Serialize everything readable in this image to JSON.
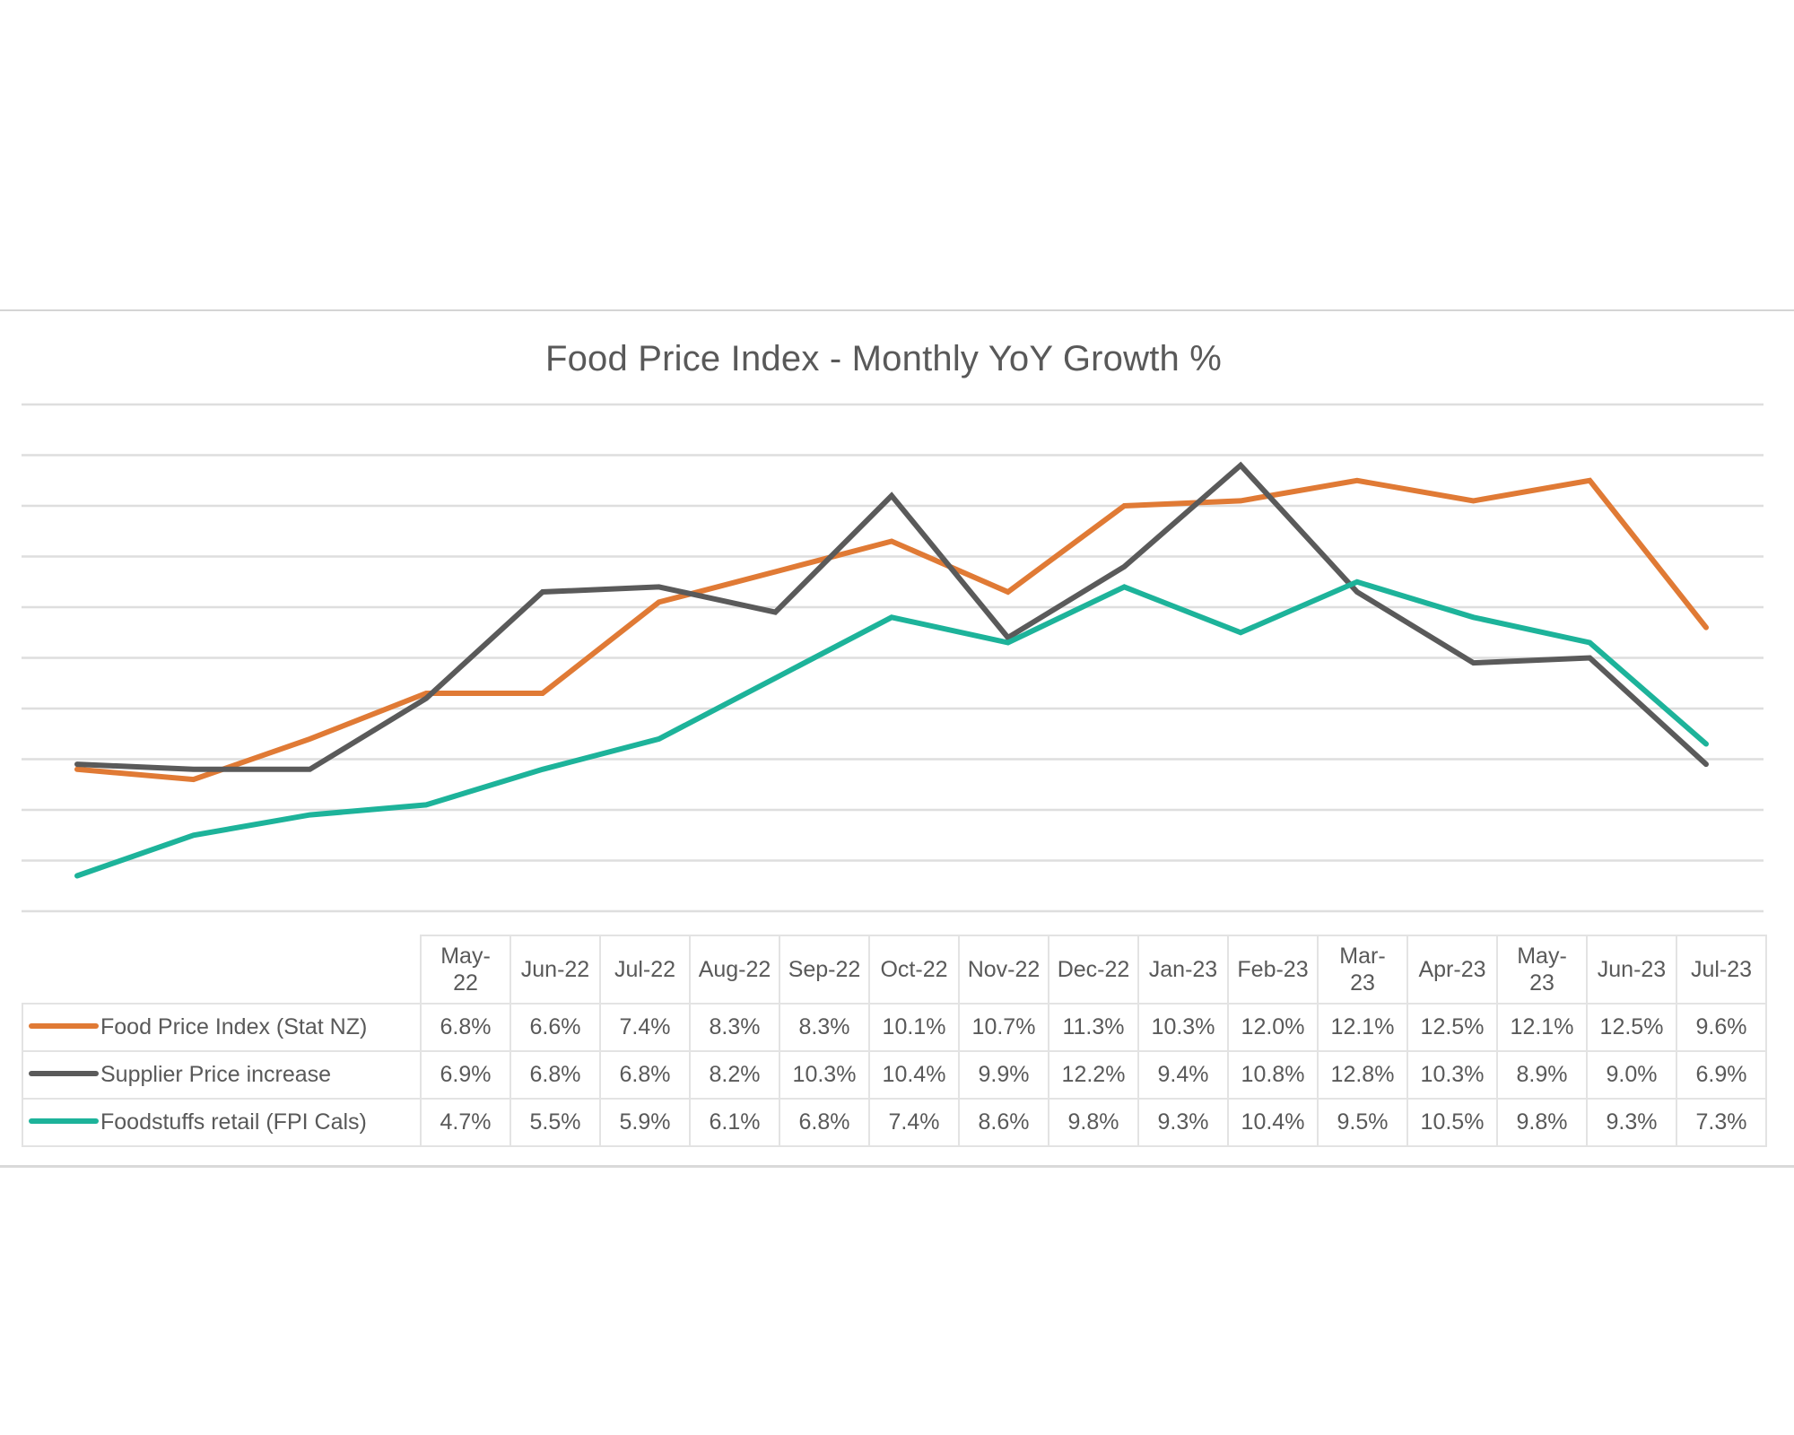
{
  "chart_data": {
    "type": "line",
    "title": "Food Price Index - Monthly YoY Growth %",
    "xlabel": "",
    "ylabel": "",
    "ylim": [
      4,
      14
    ],
    "grid": true,
    "gridline_step": 1,
    "y_tick_labels_shown": false,
    "legend": "data-table-below",
    "categories": [
      "May-22",
      "Jun-22",
      "Jul-22",
      "Aug-22",
      "Sep-22",
      "Oct-22",
      "Nov-22",
      "Dec-22",
      "Jan-23",
      "Feb-23",
      "Mar-23",
      "Apr-23",
      "May-23",
      "Jun-23",
      "Jul-23"
    ],
    "series": [
      {
        "name": "Food Price Index (Stat NZ)",
        "color": "#E07A35",
        "values": [
          6.8,
          6.6,
          7.4,
          8.3,
          8.3,
          10.1,
          10.7,
          11.3,
          10.3,
          12.0,
          12.1,
          12.5,
          12.1,
          12.5,
          9.6
        ],
        "labels": [
          "6.8%",
          "6.6%",
          "7.4%",
          "8.3%",
          "8.3%",
          "10.1%",
          "10.7%",
          "11.3%",
          "10.3%",
          "12.0%",
          "12.1%",
          "12.5%",
          "12.1%",
          "12.5%",
          "9.6%"
        ]
      },
      {
        "name": "Supplier Price increase",
        "color": "#5A5A5A",
        "values": [
          6.9,
          6.8,
          6.8,
          8.2,
          10.3,
          10.4,
          9.9,
          12.2,
          9.4,
          10.8,
          12.8,
          10.3,
          8.9,
          9.0,
          6.9
        ],
        "labels": [
          "6.9%",
          "6.8%",
          "6.8%",
          "8.2%",
          "10.3%",
          "10.4%",
          "9.9%",
          "12.2%",
          "9.4%",
          "10.8%",
          "12.8%",
          "10.3%",
          "8.9%",
          "9.0%",
          "6.9%"
        ]
      },
      {
        "name": "Foodstuffs retail (FPI Cals)",
        "color": "#1DB39A",
        "values": [
          4.7,
          5.5,
          5.9,
          6.1,
          6.8,
          7.4,
          8.6,
          9.8,
          9.3,
          10.4,
          9.5,
          10.5,
          9.8,
          9.3,
          7.3
        ],
        "labels": [
          "4.7%",
          "5.5%",
          "5.9%",
          "6.1%",
          "6.8%",
          "7.4%",
          "8.6%",
          "9.8%",
          "9.3%",
          "10.4%",
          "9.5%",
          "10.5%",
          "9.8%",
          "9.3%",
          "7.3%"
        ]
      }
    ]
  },
  "table": {
    "header_lines": [
      [
        "May-",
        "22"
      ],
      [
        "Jun-22"
      ],
      [
        "Jul-22"
      ],
      [
        "Aug-22"
      ],
      [
        "Sep-22"
      ],
      [
        "Oct-22"
      ],
      [
        "Nov-22"
      ],
      [
        "Dec-22"
      ],
      [
        "Jan-23"
      ],
      [
        "Feb-23"
      ],
      [
        "Mar-",
        "23"
      ],
      [
        "Apr-23"
      ],
      [
        "May-",
        "23"
      ],
      [
        "Jun-23"
      ],
      [
        "Jul-23"
      ]
    ]
  }
}
